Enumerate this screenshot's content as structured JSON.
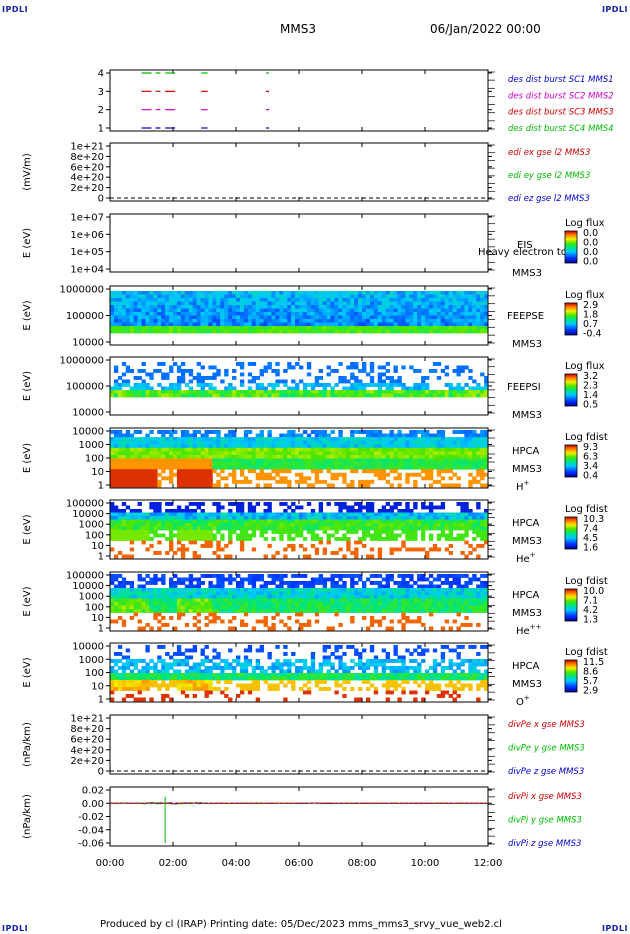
{
  "corner_marks": {
    "tl": "IPDLI",
    "tr": "IPDLI",
    "bl": "IPDLI",
    "br": "IPDLI"
  },
  "header": {
    "mission": "MMS3",
    "date": "06/Jan/2022 00:00"
  },
  "footer": {
    "text": "Produced by cl (IRAP)   Printing date: 05/Dec/2023   mms_mms3_srvy_vue_web2.cl"
  },
  "colors": {
    "red": "#cc0000",
    "green": "#00bb00",
    "blue": "#0000cc",
    "magenta": "#cc00cc"
  },
  "chart_data": [
    {
      "type": "line",
      "id": "burst",
      "yticks": [
        "4",
        "3",
        "2",
        "1"
      ],
      "legend": [
        {
          "text": "des dist burst SC1 MMS1",
          "color": "#0000cc"
        },
        {
          "text": "des dist burst SC2 MMS2",
          "color": "#cc00cc"
        },
        {
          "text": "des dist burst SC3 MMS3",
          "color": "#cc0000"
        },
        {
          "text": "des dist burst SC4 MMS4",
          "color": "#00bb00"
        }
      ],
      "segments": [
        {
          "level": 4,
          "color": "#00bb00",
          "ranges": [
            [
              1.0,
              1.6
            ],
            [
              1.75,
              2.1
            ],
            [
              2.9,
              3.1
            ],
            [
              4.95,
              5.05
            ]
          ]
        },
        {
          "level": 3,
          "color": "#cc0000",
          "ranges": [
            [
              1.0,
              1.6
            ],
            [
              1.75,
              2.1
            ],
            [
              2.9,
              3.1
            ],
            [
              4.95,
              5.05
            ]
          ]
        },
        {
          "level": 2,
          "color": "#cc00cc",
          "ranges": [
            [
              1.0,
              1.6
            ],
            [
              1.75,
              2.1
            ],
            [
              2.9,
              3.1
            ],
            [
              4.95,
              5.05
            ]
          ]
        },
        {
          "level": 1,
          "color": "#0000cc",
          "ranges": [
            [
              1.0,
              1.6
            ],
            [
              1.75,
              2.1
            ],
            [
              2.9,
              3.1
            ],
            [
              4.95,
              5.05
            ]
          ]
        }
      ]
    },
    {
      "type": "line",
      "id": "edi",
      "ylabel": "(mV/m)",
      "yticks": [
        "1e+21",
        "8e+20",
        "6e+20",
        "4e+20",
        "2e+20",
        "0"
      ],
      "legend": [
        {
          "text": "edi ex gse l2 MMS3",
          "color": "#cc0000"
        },
        {
          "text": "edi ey gse l2 MMS3",
          "color": "#00bb00"
        },
        {
          "text": "edi ez gse l2 MMS3",
          "color": "#0000cc"
        }
      ]
    },
    {
      "type": "heatmap",
      "id": "eis",
      "ylabel": "E (eV)",
      "yticks": [
        "1e+07",
        "1e+06",
        "1e+05",
        "1e+04"
      ],
      "name": "EIS",
      "sc": "MMS3",
      "overlay": "Heavy electron to",
      "cbar": {
        "title": "Log flux",
        "ticks": [
          "0.0",
          "0.0",
          "0.0",
          "0.0"
        ]
      }
    },
    {
      "type": "heatmap",
      "id": "feepse",
      "ylabel": "E (eV)",
      "yticks": [
        "1000000",
        "100000",
        "10000"
      ],
      "name": "FEEPSE",
      "sc": "MMS3",
      "cbar": {
        "title": "Log flux",
        "ticks": [
          "2.9",
          "1.8",
          "0.7",
          "-0.4"
        ]
      }
    },
    {
      "type": "heatmap",
      "id": "feepsi",
      "ylabel": "E (eV)",
      "yticks": [
        "1000000",
        "100000",
        "10000"
      ],
      "name": "FEEPSI",
      "sc": "MMS3",
      "cbar": {
        "title": "Log flux",
        "ticks": [
          "3.2",
          "2.3",
          "1.4",
          "0.5"
        ]
      }
    },
    {
      "type": "heatmap",
      "id": "hpca_h",
      "ylabel": "E (eV)",
      "yticks": [
        "10000",
        "1000",
        "100",
        "10",
        "1"
      ],
      "name": "HPCA",
      "sc": "MMS3",
      "species": "H",
      "charge": "+",
      "cbar": {
        "title": "Log fdist",
        "ticks": [
          "9.3",
          "6.3",
          "3.4",
          "0.4"
        ]
      }
    },
    {
      "type": "heatmap",
      "id": "hpca_he",
      "ylabel": "E (eV)",
      "yticks": [
        "100000",
        "10000",
        "1000",
        "100",
        "10",
        "1"
      ],
      "name": "HPCA",
      "sc": "MMS3",
      "species": "He",
      "charge": "+",
      "cbar": {
        "title": "Log fdist",
        "ticks": [
          "10.3",
          "7.4",
          "4.5",
          "1.6"
        ]
      }
    },
    {
      "type": "heatmap",
      "id": "hpca_hepp",
      "ylabel": "E (eV)",
      "yticks": [
        "100000",
        "10000",
        "1000",
        "100",
        "10",
        "1"
      ],
      "name": "HPCA",
      "sc": "MMS3",
      "species": "He",
      "charge": "++",
      "cbar": {
        "title": "Log fdist",
        "ticks": [
          "10.0",
          "7.1",
          "4.2",
          "1.3"
        ]
      }
    },
    {
      "type": "heatmap",
      "id": "hpca_o",
      "ylabel": "E (eV)",
      "yticks": [
        "10000",
        "1000",
        "100",
        "10",
        "1"
      ],
      "name": "HPCA",
      "sc": "MMS3",
      "species": "O",
      "charge": "+",
      "cbar": {
        "title": "Log fdist",
        "ticks": [
          "11.5",
          "8.6",
          "5.7",
          "2.9"
        ]
      }
    },
    {
      "type": "line",
      "id": "divpe",
      "ylabel": "(nPa/km)",
      "yticks": [
        "1e+21",
        "8e+20",
        "6e+20",
        "4e+20",
        "2e+20",
        "0"
      ],
      "legend": [
        {
          "text": "divPe x gse MMS3",
          "color": "#cc0000"
        },
        {
          "text": "divPe y gse MMS3",
          "color": "#00bb00"
        },
        {
          "text": "divPe z gse MMS3",
          "color": "#0000cc"
        }
      ]
    },
    {
      "type": "line",
      "id": "divpi",
      "ylabel": "(nPa/km)",
      "yticks": [
        "0.02",
        "0.00",
        "-0.02",
        "-0.04",
        "-0.06"
      ],
      "ylim": [
        -0.06,
        0.02
      ],
      "legend": [
        {
          "text": "divPi x gse MMS3",
          "color": "#cc0000"
        },
        {
          "text": "divPi y gse MMS3",
          "color": "#00bb00"
        },
        {
          "text": "divPi z gse MMS3",
          "color": "#0000cc"
        }
      ],
      "spike": {
        "x": 1.75,
        "y": -0.06
      }
    }
  ],
  "xaxis": {
    "ticks": [
      "00:00",
      "02:00",
      "04:00",
      "06:00",
      "08:00",
      "10:00",
      "12:00"
    ],
    "range_hours": [
      0,
      12
    ]
  }
}
